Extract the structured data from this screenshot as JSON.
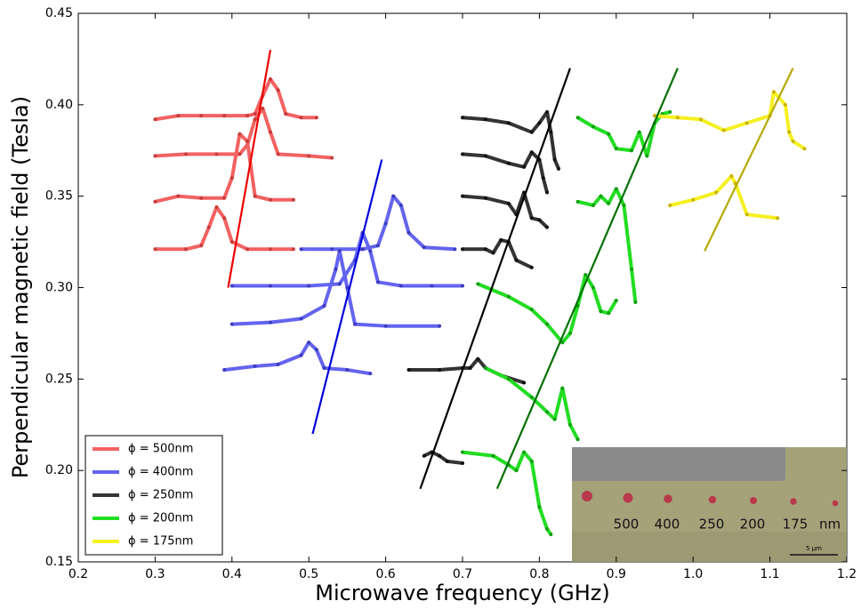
{
  "chart_data": {
    "type": "line",
    "x_label": "Microwave frequency (GHz)",
    "y_label": "Perpendicular magnetic field (Tesla)",
    "xlim": [
      0.2,
      1.2
    ],
    "ylim": [
      0.15,
      0.45
    ],
    "xticks": [
      0.2,
      0.3,
      0.4,
      0.5,
      0.6,
      0.7,
      0.8,
      0.9,
      {
        "value": 1,
        "label": "1.0"
      },
      1.1,
      1.2
    ],
    "yticks": [
      0.15,
      {
        "value": 0.2,
        "label": "0.20"
      },
      0.25,
      {
        "value": 0.3,
        "label": "0.30"
      },
      0.35,
      {
        "value": 0.4,
        "label": "0.40"
      },
      0.45
    ],
    "legend_position": "lower left",
    "series": [
      {
        "name": "ϕ = 500nm",
        "color": "#f26262",
        "marker_color": "#c83c3c",
        "fit_color": "#ee0000",
        "curves": [
          {
            "x": [
              0.3,
              0.33,
              0.36,
              0.39,
              0.42,
              0.43,
              0.44,
              0.45,
              0.46,
              0.47,
              0.49,
              0.51
            ],
            "values": [
              0.392,
              0.394,
              0.394,
              0.394,
              0.394,
              0.395,
              0.405,
              0.414,
              0.408,
              0.395,
              0.393,
              0.393
            ]
          },
          {
            "x": [
              0.3,
              0.34,
              0.38,
              0.41,
              0.42,
              0.43,
              0.44,
              0.45,
              0.46,
              0.5,
              0.53
            ],
            "values": [
              0.372,
              0.373,
              0.373,
              0.373,
              0.378,
              0.392,
              0.398,
              0.385,
              0.373,
              0.372,
              0.371
            ]
          },
          {
            "x": [
              0.3,
              0.33,
              0.36,
              0.39,
              0.4,
              0.41,
              0.42,
              0.43,
              0.45,
              0.48
            ],
            "values": [
              0.347,
              0.35,
              0.349,
              0.349,
              0.36,
              0.384,
              0.38,
              0.35,
              0.348,
              0.348
            ]
          },
          {
            "x": [
              0.3,
              0.34,
              0.36,
              0.37,
              0.38,
              0.39,
              0.4,
              0.42,
              0.45,
              0.48
            ],
            "values": [
              0.321,
              0.321,
              0.323,
              0.333,
              0.344,
              0.338,
              0.325,
              0.321,
              0.321,
              0.321
            ]
          }
        ],
        "fit": {
          "x": [
            0.395,
            0.45
          ],
          "values": [
            0.3,
            0.43
          ]
        }
      },
      {
        "name": "ϕ = 400nm",
        "color": "#6464f0",
        "marker_color": "#3c3cc0",
        "fit_color": "#0000dd",
        "curves": [
          {
            "x": [
              0.49,
              0.53,
              0.57,
              0.59,
              0.6,
              0.61,
              0.62,
              0.63,
              0.65,
              0.69
            ],
            "values": [
              0.321,
              0.321,
              0.321,
              0.323,
              0.335,
              0.35,
              0.345,
              0.33,
              0.322,
              0.321
            ]
          },
          {
            "x": [
              0.4,
              0.45,
              0.5,
              0.54,
              0.56,
              0.57,
              0.58,
              0.59,
              0.62,
              0.66,
              0.7
            ],
            "values": [
              0.301,
              0.301,
              0.301,
              0.302,
              0.315,
              0.33,
              0.32,
              0.303,
              0.301,
              0.301,
              0.301
            ]
          },
          {
            "x": [
              0.4,
              0.45,
              0.49,
              0.52,
              0.535,
              0.54,
              0.55,
              0.56,
              0.6,
              0.67
            ],
            "values": [
              0.28,
              0.281,
              0.283,
              0.29,
              0.31,
              0.32,
              0.3,
              0.28,
              0.279,
              0.279
            ]
          },
          {
            "x": [
              0.39,
              0.43,
              0.46,
              0.49,
              0.5,
              0.51,
              0.52,
              0.55,
              0.58
            ],
            "values": [
              0.255,
              0.257,
              0.258,
              0.263,
              0.27,
              0.266,
              0.256,
              0.255,
              0.253
            ]
          }
        ],
        "fit": {
          "x": [
            0.505,
            0.595
          ],
          "values": [
            0.22,
            0.37
          ]
        }
      },
      {
        "name": "ϕ = 250nm",
        "color": "#333333",
        "marker_color": "#111111",
        "fit_color": "#000000",
        "curves": [
          {
            "x": [
              0.7,
              0.73,
              0.76,
              0.79,
              0.8,
              0.81,
              0.815,
              0.82,
              0.825
            ],
            "values": [
              0.393,
              0.392,
              0.39,
              0.385,
              0.39,
              0.396,
              0.385,
              0.37,
              0.365
            ]
          },
          {
            "x": [
              0.7,
              0.73,
              0.76,
              0.78,
              0.79,
              0.8,
              0.805,
              0.81
            ],
            "values": [
              0.373,
              0.372,
              0.368,
              0.366,
              0.374,
              0.37,
              0.36,
              0.352
            ]
          },
          {
            "x": [
              0.7,
              0.73,
              0.76,
              0.77,
              0.78,
              0.79,
              0.8,
              0.81
            ],
            "values": [
              0.35,
              0.349,
              0.346,
              0.34,
              0.352,
              0.338,
              0.337,
              0.333
            ]
          },
          {
            "x": [
              0.7,
              0.73,
              0.74,
              0.75,
              0.76,
              0.77,
              0.79
            ],
            "values": [
              0.321,
              0.321,
              0.319,
              0.326,
              0.325,
              0.315,
              0.311
            ]
          },
          {
            "x": [
              0.63,
              0.67,
              0.7,
              0.71,
              0.72,
              0.73,
              0.75,
              0.78
            ],
            "values": [
              0.255,
              0.255,
              0.256,
              0.256,
              0.261,
              0.256,
              0.252,
              0.248
            ]
          },
          {
            "x": [
              0.65,
              0.66,
              0.67,
              0.68,
              0.7
            ],
            "values": [
              0.208,
              0.21,
              0.208,
              0.205,
              0.204
            ]
          }
        ],
        "fit": {
          "x": [
            0.645,
            0.84
          ],
          "values": [
            0.19,
            0.42
          ]
        }
      },
      {
        "name": "ϕ = 200nm",
        "color": "#22dd22",
        "marker_color": "#10a010",
        "fit_color": "#007000",
        "curves": [
          {
            "x": [
              0.85,
              0.87,
              0.89,
              0.9,
              0.92,
              0.93,
              0.94,
              0.95,
              0.96,
              0.97
            ],
            "values": [
              0.393,
              0.388,
              0.384,
              0.376,
              0.375,
              0.385,
              0.372,
              0.39,
              0.395,
              0.396
            ]
          },
          {
            "x": [
              0.85,
              0.87,
              0.88,
              0.89,
              0.9,
              0.91,
              0.92,
              0.925
            ],
            "values": [
              0.347,
              0.345,
              0.35,
              0.346,
              0.354,
              0.345,
              0.31,
              0.292
            ]
          },
          {
            "x": [
              0.72,
              0.76,
              0.79,
              0.81,
              0.83,
              0.84,
              0.85,
              0.86,
              0.87,
              0.88,
              0.89,
              0.9
            ],
            "values": [
              0.302,
              0.295,
              0.288,
              0.28,
              0.27,
              0.275,
              0.29,
              0.307,
              0.3,
              0.287,
              0.286,
              0.293
            ]
          },
          {
            "x": [
              0.73,
              0.76,
              0.79,
              0.81,
              0.82,
              0.83,
              0.84,
              0.85
            ],
            "values": [
              0.256,
              0.25,
              0.24,
              0.232,
              0.228,
              0.245,
              0.225,
              0.217
            ]
          },
          {
            "x": [
              0.7,
              0.74,
              0.76,
              0.77,
              0.78,
              0.79,
              0.8,
              0.81,
              0.815
            ],
            "values": [
              0.21,
              0.208,
              0.203,
              0.2,
              0.21,
              0.205,
              0.18,
              0.168,
              0.165
            ]
          }
        ],
        "fit": {
          "x": [
            0.745,
            0.98
          ],
          "values": [
            0.19,
            0.42
          ]
        }
      },
      {
        "name": "ϕ = 175nm",
        "color": "#f5f020",
        "marker_color": "#c8b400",
        "fit_color": "#b5a800",
        "curves": [
          {
            "x": [
              0.95,
              0.98,
              1.01,
              1.04,
              1.07,
              1.1,
              1.105,
              1.12,
              1.125,
              1.13,
              1.145
            ],
            "values": [
              0.394,
              0.393,
              0.392,
              0.386,
              0.39,
              0.394,
              0.407,
              0.4,
              0.385,
              0.38,
              0.376
            ]
          },
          {
            "x": [
              0.97,
              1.0,
              1.03,
              1.05,
              1.055,
              1.07,
              1.11
            ],
            "values": [
              0.345,
              0.348,
              0.352,
              0.361,
              0.357,
              0.34,
              0.338
            ]
          }
        ],
        "fit": {
          "x": [
            1.015,
            1.13
          ],
          "values": [
            0.32,
            0.42
          ]
        }
      }
    ],
    "inset": {
      "labels": [
        "500",
        "400",
        "250",
        "200",
        "175"
      ],
      "unit": "nm",
      "scale_bar": "5 μm"
    }
  }
}
